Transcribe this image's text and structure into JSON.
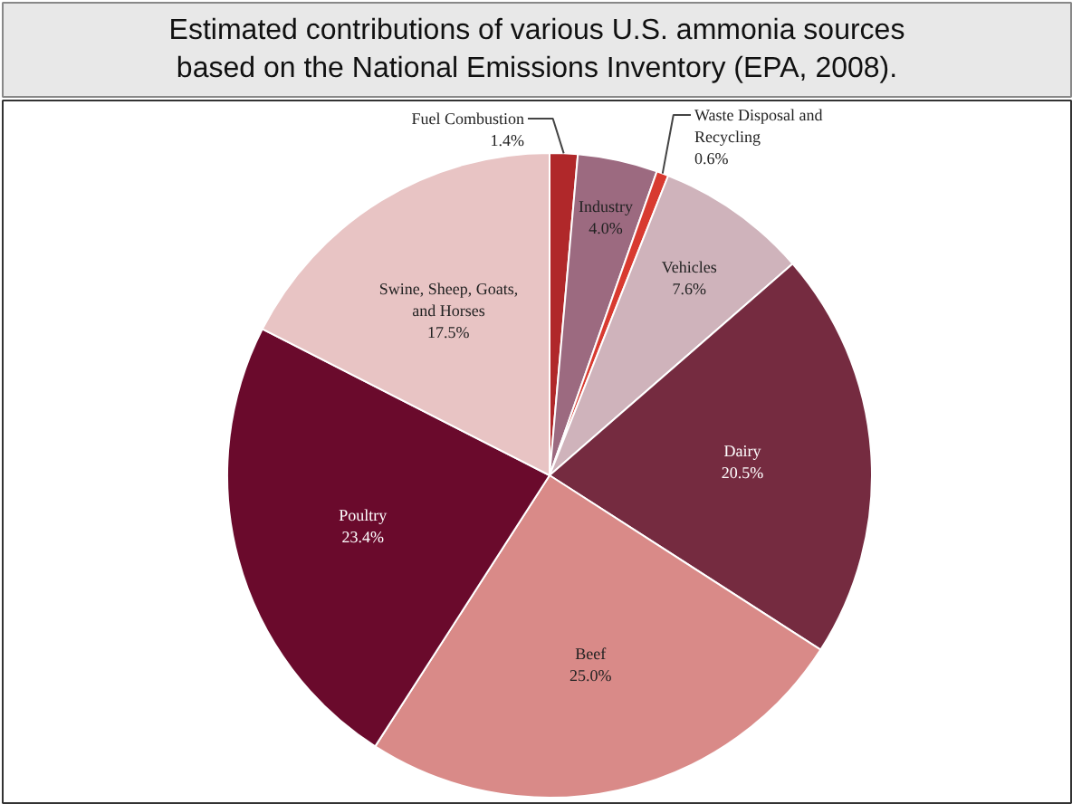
{
  "chart_data": {
    "type": "pie",
    "title": "Estimated contributions of various U.S. ammonia sources based on the National Emissions Inventory (EPA, 2008).",
    "categories": [
      "Fuel Combustion",
      "Industry",
      "Waste Disposal and Recycling",
      "Vehicles",
      "Dairy",
      "Beef",
      "Poultry",
      "Swine, Sheep, Goats, and Horses"
    ],
    "values": [
      1.4,
      4.0,
      0.6,
      7.6,
      20.5,
      25.0,
      23.4,
      17.5
    ],
    "value_labels": [
      "1.4%",
      "4.0%",
      "0.6%",
      "7.6%",
      "20.5%",
      "25.0%",
      "23.4%",
      "17.5%"
    ],
    "colors": [
      "#b0282a",
      "#9c6a80",
      "#d83a30",
      "#cfb3bb",
      "#752b40",
      "#d98a88",
      "#6a0a2c",
      "#e8c4c4"
    ]
  }
}
